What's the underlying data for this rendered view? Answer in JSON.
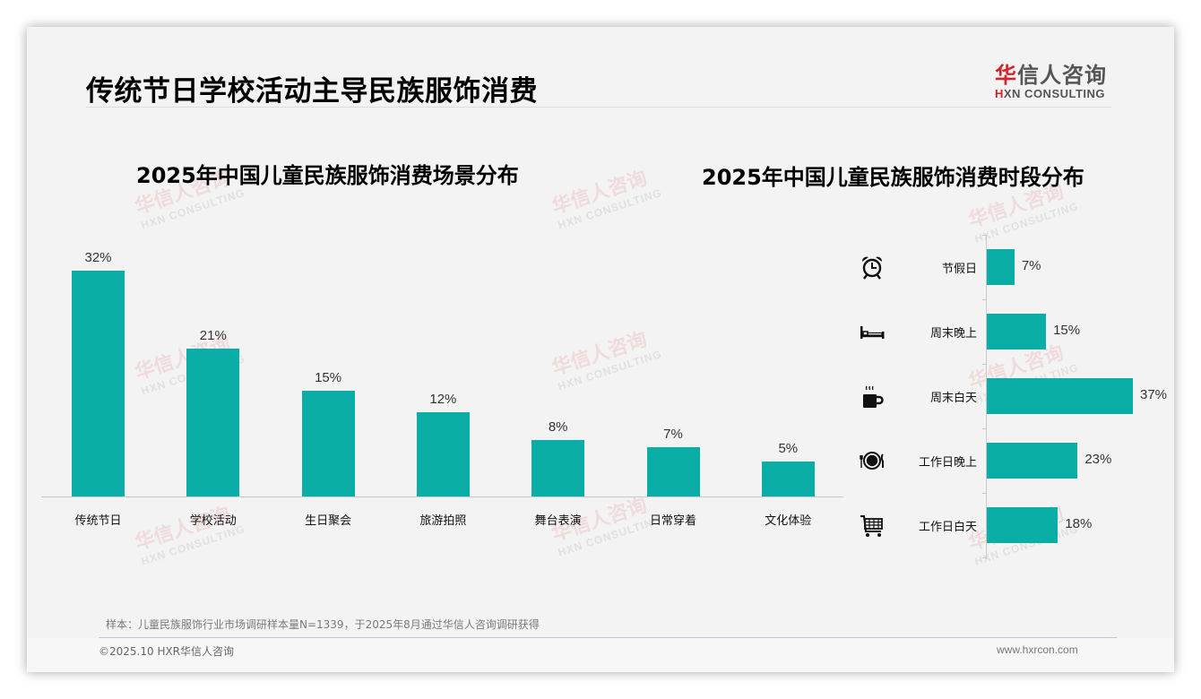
{
  "header": {
    "title": "传统节日学校活动主导民族服饰消费",
    "logo": {
      "cn_first": "华",
      "cn_rest": "信人咨询",
      "en_mark": "H",
      "en_rest": "XN CONSULTING"
    }
  },
  "watermark": {
    "cn": "华信人咨询",
    "en": "HXN CONSULTING"
  },
  "colors": {
    "bar": "#0aaea6",
    "brand_red": "#d0252b",
    "background": "#f3f3f3"
  },
  "chart_data": [
    {
      "type": "bar",
      "title": "2025年中国儿童民族服饰消费场景分布",
      "categories": [
        "传统节日",
        "学校活动",
        "生日聚会",
        "旅游拍照",
        "舞台表演",
        "日常穿着",
        "文化体验"
      ],
      "values": [
        32,
        21,
        15,
        12,
        8,
        7,
        5
      ],
      "value_labels": [
        "32%",
        "21%",
        "15%",
        "12%",
        "8%",
        "7%",
        "5%"
      ],
      "xlabel": "",
      "ylabel": "",
      "unit": "%",
      "ylim": [
        0,
        35
      ],
      "grid": false,
      "legend": "none"
    },
    {
      "type": "bar",
      "orientation": "horizontal",
      "title": "2025年中国儿童民族服饰消费时段分布",
      "categories": [
        "节假日",
        "周末晚上",
        "周末白天",
        "工作日晚上",
        "工作日白天"
      ],
      "values": [
        7,
        15,
        37,
        23,
        18
      ],
      "value_labels": [
        "7%",
        "15%",
        "37%",
        "23%",
        "18%"
      ],
      "icons": [
        "alarm-clock-icon",
        "bed-icon",
        "coffee-cup-icon",
        "dinner-plate-icon",
        "shopping-cart-icon"
      ],
      "xlabel": "",
      "ylabel": "",
      "unit": "%",
      "xlim": [
        0,
        40
      ],
      "grid": false,
      "legend": "none"
    }
  ],
  "footer": {
    "note": "样本：儿童民族服饰行业市场调研样本量N=1339，于2025年8月通过华信人咨询调研获得",
    "copyright": "©2025.10 HXR华信人咨询",
    "website": "www.hxrcon.com"
  }
}
